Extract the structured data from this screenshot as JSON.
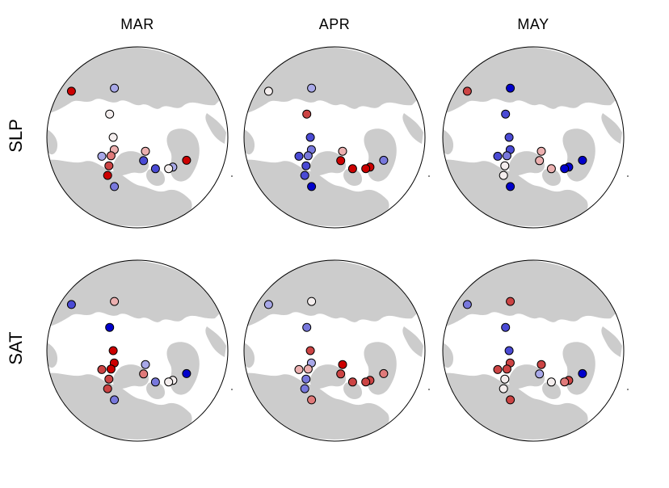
{
  "columns": [
    "MAR",
    "APR",
    "MAY"
  ],
  "rows": [
    "SLP",
    "SAT"
  ],
  "colors": {
    "background": "#ffffff",
    "land": "#cccccc",
    "ocean": "#ffffff",
    "outline": "#000000"
  },
  "marker_palette": {
    "dark_blue": "#0000cc",
    "blue": "#4a4ad4",
    "med_blue": "#7878dc",
    "light_blue": "#a8a8e8",
    "white": "#f4eeee",
    "light_red": "#ecb0b0",
    "med_red": "#e07a7a",
    "red": "#cc4444",
    "dark_red": "#cc0000"
  },
  "panels": [
    {
      "row": "SLP",
      "col": "MAR",
      "stations": [
        {
          "lon": -130,
          "lat": 72,
          "c": "white"
        },
        {
          "lon": 15,
          "lat": 78,
          "c": "blue"
        },
        {
          "lon": 30,
          "lat": 72,
          "c": "blue"
        },
        {
          "lon": 50,
          "lat": 67,
          "c": "light_blue"
        },
        {
          "lon": 45,
          "lat": 68,
          "c": "white"
        },
        {
          "lon": 30,
          "lat": 82,
          "c": "light_red"
        },
        {
          "lon": 65,
          "lat": 63,
          "c": "dark_red"
        },
        {
          "lon": -90,
          "lat": 78,
          "c": "white"
        },
        {
          "lon": -155,
          "lat": 63,
          "c": "light_blue"
        },
        {
          "lon": -62,
          "lat": 77,
          "c": "light_red"
        },
        {
          "lon": -55,
          "lat": 74,
          "c": "med_red"
        },
        {
          "lon": -62,
          "lat": 70,
          "c": "light_blue"
        },
        {
          "lon": -45,
          "lat": 70,
          "c": "red"
        },
        {
          "lon": -38,
          "lat": 66,
          "c": "dark_red"
        },
        {
          "lon": -125,
          "lat": 50,
          "c": "dark_red"
        },
        {
          "lon": -25,
          "lat": 63,
          "c": "med_blue"
        }
      ]
    },
    {
      "row": "SLP",
      "col": "APR",
      "stations": [
        {
          "lon": -130,
          "lat": 72,
          "c": "red"
        },
        {
          "lon": 15,
          "lat": 78,
          "c": "dark_red"
        },
        {
          "lon": 30,
          "lat": 72,
          "c": "dark_red"
        },
        {
          "lon": 50,
          "lat": 67,
          "c": "dark_red"
        },
        {
          "lon": 45,
          "lat": 68,
          "c": "dark_red"
        },
        {
          "lon": 30,
          "lat": 82,
          "c": "light_red"
        },
        {
          "lon": 65,
          "lat": 63,
          "c": "med_blue"
        },
        {
          "lon": -90,
          "lat": 78,
          "c": "blue"
        },
        {
          "lon": -155,
          "lat": 63,
          "c": "light_blue"
        },
        {
          "lon": -62,
          "lat": 77,
          "c": "med_blue"
        },
        {
          "lon": -55,
          "lat": 74,
          "c": "med_blue"
        },
        {
          "lon": -62,
          "lat": 70,
          "c": "blue"
        },
        {
          "lon": -45,
          "lat": 70,
          "c": "blue"
        },
        {
          "lon": -38,
          "lat": 66,
          "c": "blue"
        },
        {
          "lon": -125,
          "lat": 50,
          "c": "white"
        },
        {
          "lon": -25,
          "lat": 63,
          "c": "dark_blue"
        }
      ]
    },
    {
      "row": "SLP",
      "col": "MAY",
      "stations": [
        {
          "lon": -130,
          "lat": 72,
          "c": "blue"
        },
        {
          "lon": 15,
          "lat": 78,
          "c": "light_red"
        },
        {
          "lon": 30,
          "lat": 72,
          "c": "light_red"
        },
        {
          "lon": 50,
          "lat": 67,
          "c": "dark_blue"
        },
        {
          "lon": 45,
          "lat": 68,
          "c": "dark_blue"
        },
        {
          "lon": 30,
          "lat": 82,
          "c": "light_red"
        },
        {
          "lon": 65,
          "lat": 63,
          "c": "dark_blue"
        },
        {
          "lon": -90,
          "lat": 78,
          "c": "blue"
        },
        {
          "lon": -155,
          "lat": 63,
          "c": "dark_blue"
        },
        {
          "lon": -62,
          "lat": 77,
          "c": "blue"
        },
        {
          "lon": -55,
          "lat": 74,
          "c": "med_blue"
        },
        {
          "lon": -62,
          "lat": 70,
          "c": "blue"
        },
        {
          "lon": -45,
          "lat": 70,
          "c": "white"
        },
        {
          "lon": -38,
          "lat": 66,
          "c": "white"
        },
        {
          "lon": -125,
          "lat": 50,
          "c": "red"
        },
        {
          "lon": -25,
          "lat": 63,
          "c": "dark_blue"
        }
      ]
    },
    {
      "row": "SAT",
      "col": "MAR",
      "stations": [
        {
          "lon": -130,
          "lat": 72,
          "c": "dark_blue"
        },
        {
          "lon": 15,
          "lat": 78,
          "c": "med_red"
        },
        {
          "lon": 30,
          "lat": 72,
          "c": "med_blue"
        },
        {
          "lon": 50,
          "lat": 67,
          "c": "white"
        },
        {
          "lon": 45,
          "lat": 68,
          "c": "white"
        },
        {
          "lon": 30,
          "lat": 82,
          "c": "light_blue"
        },
        {
          "lon": 65,
          "lat": 63,
          "c": "dark_blue"
        },
        {
          "lon": -90,
          "lat": 78,
          "c": "dark_red"
        },
        {
          "lon": -155,
          "lat": 63,
          "c": "light_red"
        },
        {
          "lon": -62,
          "lat": 77,
          "c": "dark_red"
        },
        {
          "lon": -55,
          "lat": 74,
          "c": "dark_red"
        },
        {
          "lon": -62,
          "lat": 70,
          "c": "red"
        },
        {
          "lon": -45,
          "lat": 70,
          "c": "red"
        },
        {
          "lon": -38,
          "lat": 66,
          "c": "red"
        },
        {
          "lon": -125,
          "lat": 50,
          "c": "blue"
        },
        {
          "lon": -25,
          "lat": 63,
          "c": "med_blue"
        }
      ]
    },
    {
      "row": "SAT",
      "col": "APR",
      "stations": [
        {
          "lon": -130,
          "lat": 72,
          "c": "med_blue"
        },
        {
          "lon": 15,
          "lat": 78,
          "c": "red"
        },
        {
          "lon": 30,
          "lat": 72,
          "c": "red"
        },
        {
          "lon": 50,
          "lat": 67,
          "c": "red"
        },
        {
          "lon": 45,
          "lat": 68,
          "c": "red"
        },
        {
          "lon": 30,
          "lat": 82,
          "c": "dark_red"
        },
        {
          "lon": 65,
          "lat": 63,
          "c": "med_red"
        },
        {
          "lon": -90,
          "lat": 78,
          "c": "red"
        },
        {
          "lon": -155,
          "lat": 63,
          "c": "white"
        },
        {
          "lon": -62,
          "lat": 77,
          "c": "light_blue"
        },
        {
          "lon": -55,
          "lat": 74,
          "c": "light_red"
        },
        {
          "lon": -62,
          "lat": 70,
          "c": "light_red"
        },
        {
          "lon": -45,
          "lat": 70,
          "c": "med_blue"
        },
        {
          "lon": -38,
          "lat": 66,
          "c": "med_blue"
        },
        {
          "lon": -125,
          "lat": 50,
          "c": "light_blue"
        },
        {
          "lon": -25,
          "lat": 63,
          "c": "med_red"
        }
      ]
    },
    {
      "row": "SAT",
      "col": "MAY",
      "stations": [
        {
          "lon": -130,
          "lat": 72,
          "c": "blue"
        },
        {
          "lon": 15,
          "lat": 78,
          "c": "light_blue"
        },
        {
          "lon": 30,
          "lat": 72,
          "c": "white"
        },
        {
          "lon": 50,
          "lat": 67,
          "c": "red"
        },
        {
          "lon": 45,
          "lat": 68,
          "c": "med_red"
        },
        {
          "lon": 30,
          "lat": 82,
          "c": "red"
        },
        {
          "lon": 65,
          "lat": 63,
          "c": "dark_blue"
        },
        {
          "lon": -90,
          "lat": 78,
          "c": "blue"
        },
        {
          "lon": -155,
          "lat": 63,
          "c": "red"
        },
        {
          "lon": -62,
          "lat": 77,
          "c": "red"
        },
        {
          "lon": -55,
          "lat": 74,
          "c": "red"
        },
        {
          "lon": -62,
          "lat": 70,
          "c": "red"
        },
        {
          "lon": -45,
          "lat": 70,
          "c": "white"
        },
        {
          "lon": -38,
          "lat": 66,
          "c": "white"
        },
        {
          "lon": -125,
          "lat": 50,
          "c": "med_blue"
        },
        {
          "lon": -25,
          "lat": 63,
          "c": "red"
        }
      ]
    }
  ]
}
